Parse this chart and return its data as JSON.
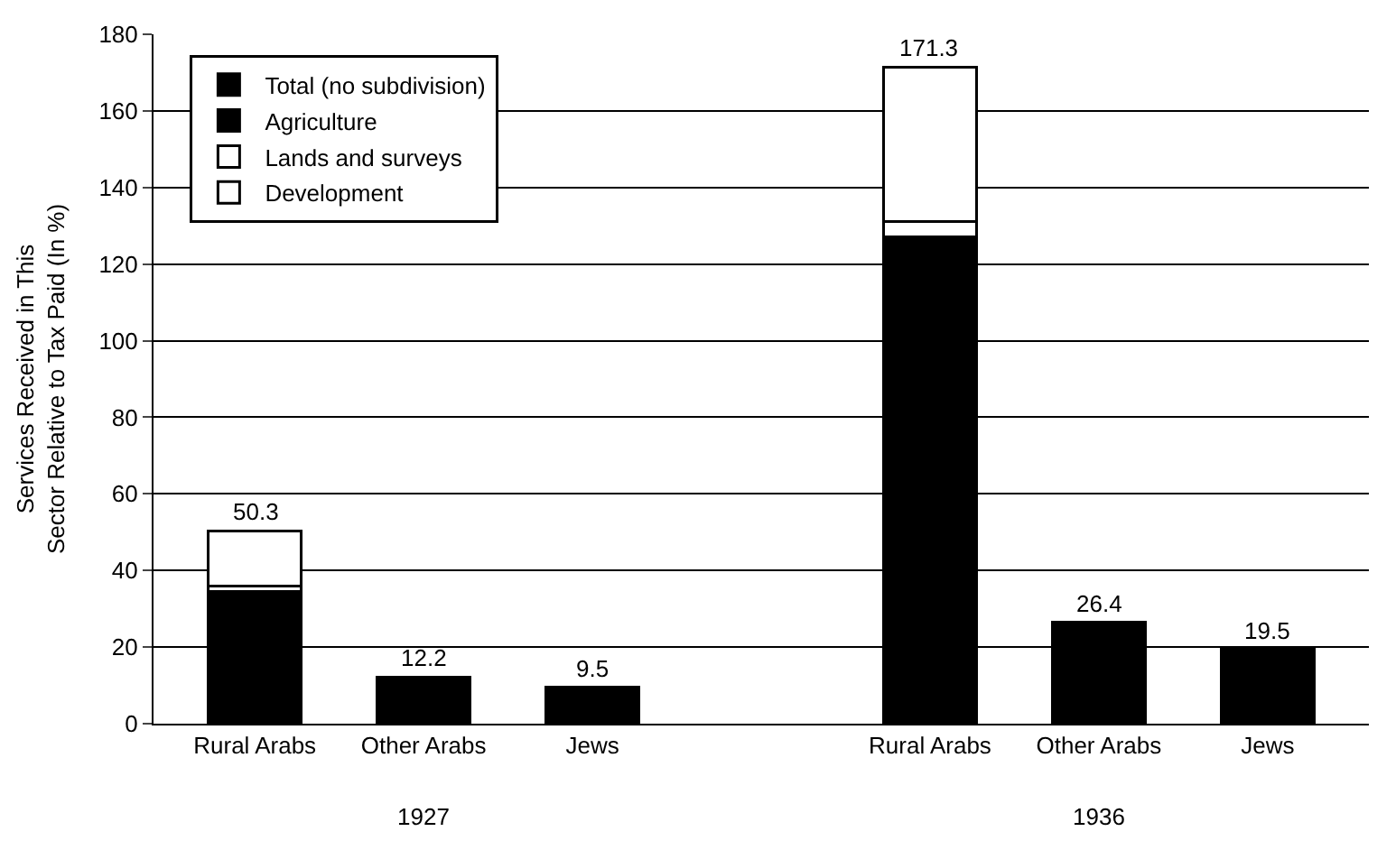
{
  "chart_data": {
    "type": "bar",
    "stacked": true,
    "ylabel": "Services Received in This\nSector Relative to Tax Paid (In %)",
    "categories": [
      "Rural Arabs",
      "Other Arabs",
      "Jews",
      null,
      "Rural Arabs",
      "Other Arabs",
      "Jews"
    ],
    "series": [
      {
        "name": "Total (no subdivision)",
        "color": "#000000",
        "values": [
          null,
          12.2,
          9.5,
          null,
          null,
          26.4,
          19.5
        ]
      },
      {
        "name": "Agriculture",
        "color": "#000000",
        "values": [
          34.5,
          null,
          null,
          null,
          127,
          null,
          null
        ]
      },
      {
        "name": "Lands and surveys",
        "color": "#ffffff",
        "values": [
          1.5,
          null,
          null,
          null,
          4,
          null,
          null
        ]
      },
      {
        "name": "Development",
        "color": "#ffffff",
        "values": [
          14.3,
          null,
          null,
          null,
          40.3,
          null,
          null
        ]
      }
    ],
    "totals": [
      "50.3",
      "12.2",
      "9.5",
      null,
      "171.3",
      "26.4",
      "19.5"
    ],
    "annotations": [
      "1927",
      "1936"
    ],
    "ylim": [
      0,
      180
    ],
    "yticks": [
      0,
      20,
      40,
      60,
      80,
      100,
      120,
      140,
      160,
      180
    ],
    "grid": "y",
    "legend": "top left"
  }
}
